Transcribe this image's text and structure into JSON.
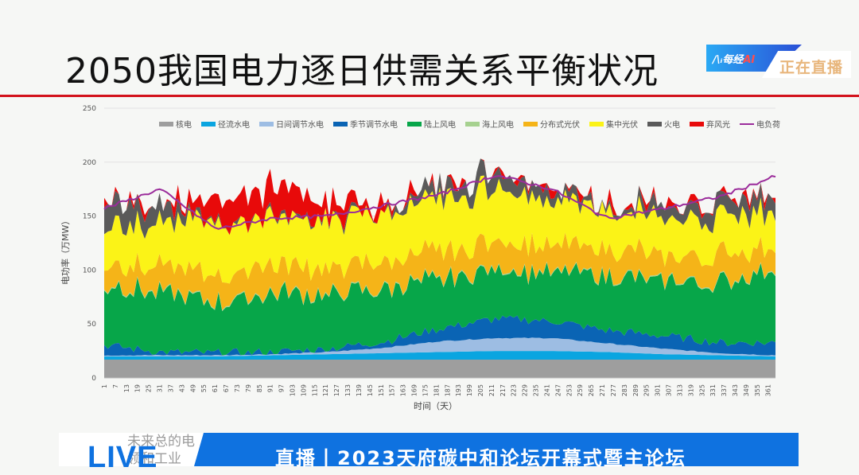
{
  "title": "2050我国电力逐日供需关系平衡状况",
  "badge": {
    "logo": "每经",
    "logo_ai": "AI",
    "status": "正在直播"
  },
  "banner": {
    "live": "LIVE",
    "ghost_line1": "未来总的电",
    "ghost_line2": "领和工业",
    "headline": "直播丨2023天府碳中和论坛开幕式暨主论坛"
  },
  "colors": {
    "accent_red": "#d3121c",
    "banner_blue": "#0f72e0"
  },
  "chart_data": {
    "type": "area",
    "stacked": true,
    "title": "2050我国电力逐日供需关系平衡状况",
    "xlabel": "时间（天）",
    "ylabel": "电功率（万MW）",
    "ylim": [
      0,
      250
    ],
    "yticks": [
      0,
      50,
      100,
      150,
      200,
      250
    ],
    "grid": true,
    "legend_position": "top",
    "x_ticks": [
      "1",
      "7",
      "13",
      "19",
      "25",
      "31",
      "37",
      "43",
      "49",
      "55",
      "61",
      "67",
      "73",
      "79",
      "85",
      "91",
      "97",
      "103",
      "109",
      "115",
      "121",
      "127",
      "133",
      "139",
      "145",
      "151",
      "157",
      "163",
      "169",
      "175",
      "181",
      "187",
      "193",
      "199",
      "205",
      "211",
      "217",
      "223",
      "229",
      "235",
      "241",
      "247",
      "253",
      "259",
      "265",
      "271",
      "277",
      "283",
      "289",
      "295",
      "301",
      "307",
      "313",
      "319",
      "325",
      "331",
      "337",
      "343",
      "349",
      "355",
      "361"
    ],
    "x": [
      1,
      31,
      61,
      91,
      121,
      151,
      181,
      211,
      241,
      271,
      301,
      331,
      361
    ],
    "series": [
      {
        "name": "核电",
        "color": "#9e9e9e",
        "values": [
          17,
          17,
          17,
          17,
          17,
          17,
          17,
          17,
          17,
          17,
          17,
          17,
          17
        ]
      },
      {
        "name": "径流水电",
        "color": "#0aa5e0",
        "values": [
          3,
          3,
          3,
          4,
          5,
          6,
          7,
          8,
          8,
          7,
          5,
          4,
          3
        ]
      },
      {
        "name": "日间调节水电",
        "color": "#9dbde3",
        "values": [
          1,
          1,
          1,
          1,
          2,
          5,
          10,
          12,
          12,
          8,
          5,
          2,
          1
        ]
      },
      {
        "name": "季节调节水电",
        "color": "#0a64b4",
        "values": [
          10,
          3,
          2,
          2,
          3,
          6,
          12,
          18,
          16,
          12,
          12,
          10,
          12
        ]
      },
      {
        "name": "陆上风电",
        "color": "#07a649",
        "values": [
          55,
          55,
          45,
          55,
          50,
          50,
          45,
          45,
          45,
          50,
          50,
          55,
          70
        ]
      },
      {
        "name": "海上风电",
        "color": "#a6d18f",
        "values": [
          1,
          1,
          1,
          1,
          1,
          1,
          1,
          1,
          1,
          1,
          1,
          1,
          1
        ]
      },
      {
        "name": "分布式光伏",
        "color": "#f5b418",
        "values": [
          20,
          25,
          25,
          25,
          25,
          25,
          25,
          25,
          25,
          25,
          22,
          25,
          22
        ]
      },
      {
        "name": "集中光伏",
        "color": "#fbf317",
        "values": [
          35,
          40,
          50,
          45,
          45,
          45,
          50,
          50,
          40,
          35,
          35,
          35,
          35
        ]
      },
      {
        "name": "火电",
        "color": "#5a5a5a",
        "values": [
          25,
          15,
          0,
          0,
          0,
          2,
          10,
          15,
          10,
          2,
          10,
          15,
          15
        ]
      },
      {
        "name": "弃风光",
        "color": "#e80a0a",
        "values": [
          0,
          0,
          25,
          25,
          15,
          8,
          0,
          0,
          0,
          3,
          0,
          0,
          3
        ]
      }
    ],
    "load": {
      "name": "电负荷",
      "color": "#9b2c9b",
      "values": [
        157,
        175,
        138,
        148,
        150,
        160,
        170,
        188,
        175,
        148,
        157,
        168,
        187
      ]
    }
  },
  "legend": [
    "核电",
    "径流水电",
    "日间调节水电",
    "季节调节水电",
    "陆上风电",
    "海上风电",
    "分布式光伏",
    "集中光伏",
    "火电",
    "弃风光",
    "电负荷"
  ]
}
